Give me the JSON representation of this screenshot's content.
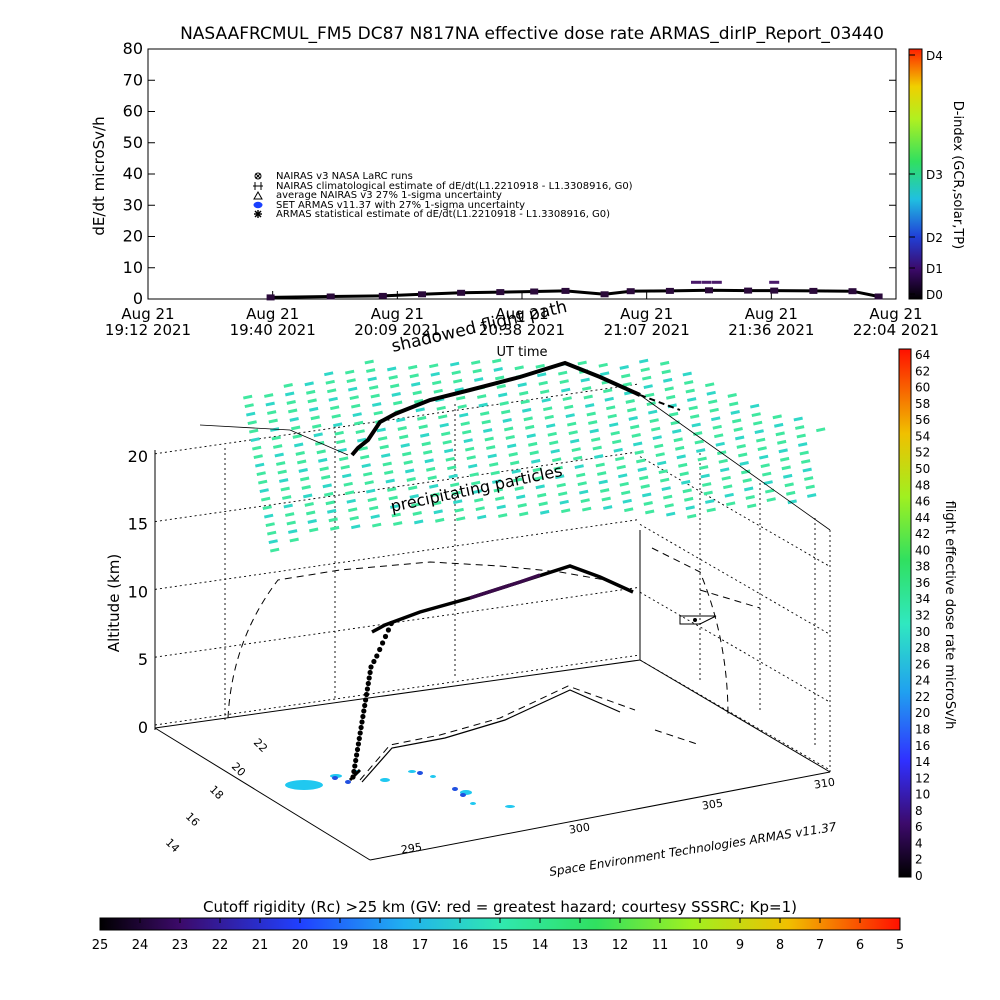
{
  "header": {
    "title": "NASAAFRCMUL_FM5 DC87 N817NA effective dose rate ARMAS_dirIP_Report_03440"
  },
  "legend_entries": [
    {
      "marker": "circle-x",
      "text": "NAIRAS v3 NASA LaRC runs"
    },
    {
      "marker": "plus",
      "text": "NAIRAS climatological estimate of dE/dt(L1.2210918 - L1.3308916, G0)"
    },
    {
      "marker": "triangle",
      "text": "average NAIRAS v3 27% 1-sigma uncertainty"
    },
    {
      "marker": "blue-dot",
      "text": "SET ARMAS v11.37 with 27% 1-sigma uncertainty"
    },
    {
      "marker": "star",
      "text": "ARMAS statistical estimate of dE/dt(L1.2210918 - L1.3308916, G0)"
    }
  ],
  "chart_data": [
    {
      "type": "scatter",
      "title": "NASAAFRCMUL_FM5 DC87 N817NA effective dose rate ARMAS_dirIP_Report_03440",
      "ylabel": "dE/dt microSv/h",
      "xlabel": "UT time",
      "ylim": [
        0,
        80
      ],
      "yticks": [
        "0",
        "10",
        "20",
        "30",
        "40",
        "50",
        "60",
        "70",
        "80"
      ],
      "xticks": [
        {
          "day": "Aug 21",
          "time": "19:12 2021"
        },
        {
          "day": "Aug 21",
          "time": "19:40 2021"
        },
        {
          "day": "Aug 21",
          "time": "20:09 2021"
        },
        {
          "day": "Aug 21",
          "time": "20:38 2021"
        },
        {
          "day": "Aug 21",
          "time": "21:07 2021"
        },
        {
          "day": "Aug 21",
          "time": "21:36 2021"
        },
        {
          "day": "Aug 21",
          "time": "22:04 2021"
        }
      ],
      "dindex_axis": {
        "label": "D-index (GCR,solar,TP)",
        "ticks": [
          "D0",
          "D1",
          "D2",
          "D3",
          "D4"
        ]
      },
      "series": [
        {
          "name": "ARMAS statistical estimate of dE/dt(L1.2210918 - L1.3308916, G0)",
          "x_hours": [
            19.67,
            19.9,
            20.1,
            20.25,
            20.4,
            20.55,
            20.68,
            20.8,
            20.95,
            21.05,
            21.2,
            21.35,
            21.5,
            21.6,
            21.75,
            21.9,
            22.0
          ],
          "y": [
            0.5,
            0.8,
            1.0,
            1.5,
            2.0,
            2.2,
            2.4,
            2.6,
            1.5,
            2.5,
            2.6,
            2.8,
            2.7,
            2.7,
            2.6,
            2.5,
            0.8
          ]
        }
      ],
      "spikes": [
        {
          "x_hours": 21.3,
          "y": 5.5
        },
        {
          "x_hours": 21.34,
          "y": 5.5
        },
        {
          "x_hours": 21.38,
          "y": 5.5
        },
        {
          "x_hours": 21.6,
          "y": 5.5
        }
      ]
    },
    {
      "type": "scatter",
      "title": "",
      "zlabel": "Altitude (km)",
      "zticks": [
        "0",
        "5",
        "10",
        "15",
        "20"
      ],
      "latitude_ticks": [
        "14",
        "16",
        "18",
        "20",
        "22"
      ],
      "longitude_ticks": [
        "295",
        "300",
        "305",
        "310"
      ],
      "annotations": [
        "shadowed flight path",
        "precipitating particles",
        "Space Environment Technologies ARMAS v11.37"
      ],
      "colorbar": {
        "label": "flight effective dose rate microSv/h",
        "ticks": [
          "0",
          "2",
          "4",
          "6",
          "8",
          "10",
          "12",
          "14",
          "16",
          "18",
          "20",
          "22",
          "24",
          "26",
          "28",
          "30",
          "32",
          "34",
          "36",
          "38",
          "40",
          "42",
          "44",
          "46",
          "48",
          "50",
          "52",
          "54",
          "56",
          "58",
          "60",
          "62",
          "64"
        ]
      }
    }
  ],
  "rigidity_bar": {
    "label": "Cutoff rigidity (Rc) >25 km (GV: red = greatest hazard; courtesy SSSRC; Kp=1)",
    "ticks": [
      "25",
      "24",
      "23",
      "22",
      "21",
      "20",
      "19",
      "18",
      "17",
      "16",
      "15",
      "14",
      "13",
      "12",
      "11",
      "10",
      "9",
      "8",
      "7",
      "6",
      "5"
    ]
  },
  "colors": {
    "particles": "#40e8a0",
    "particles_alt": "#30d8c8",
    "flight": "#000000",
    "track": "#3a0a4a"
  }
}
